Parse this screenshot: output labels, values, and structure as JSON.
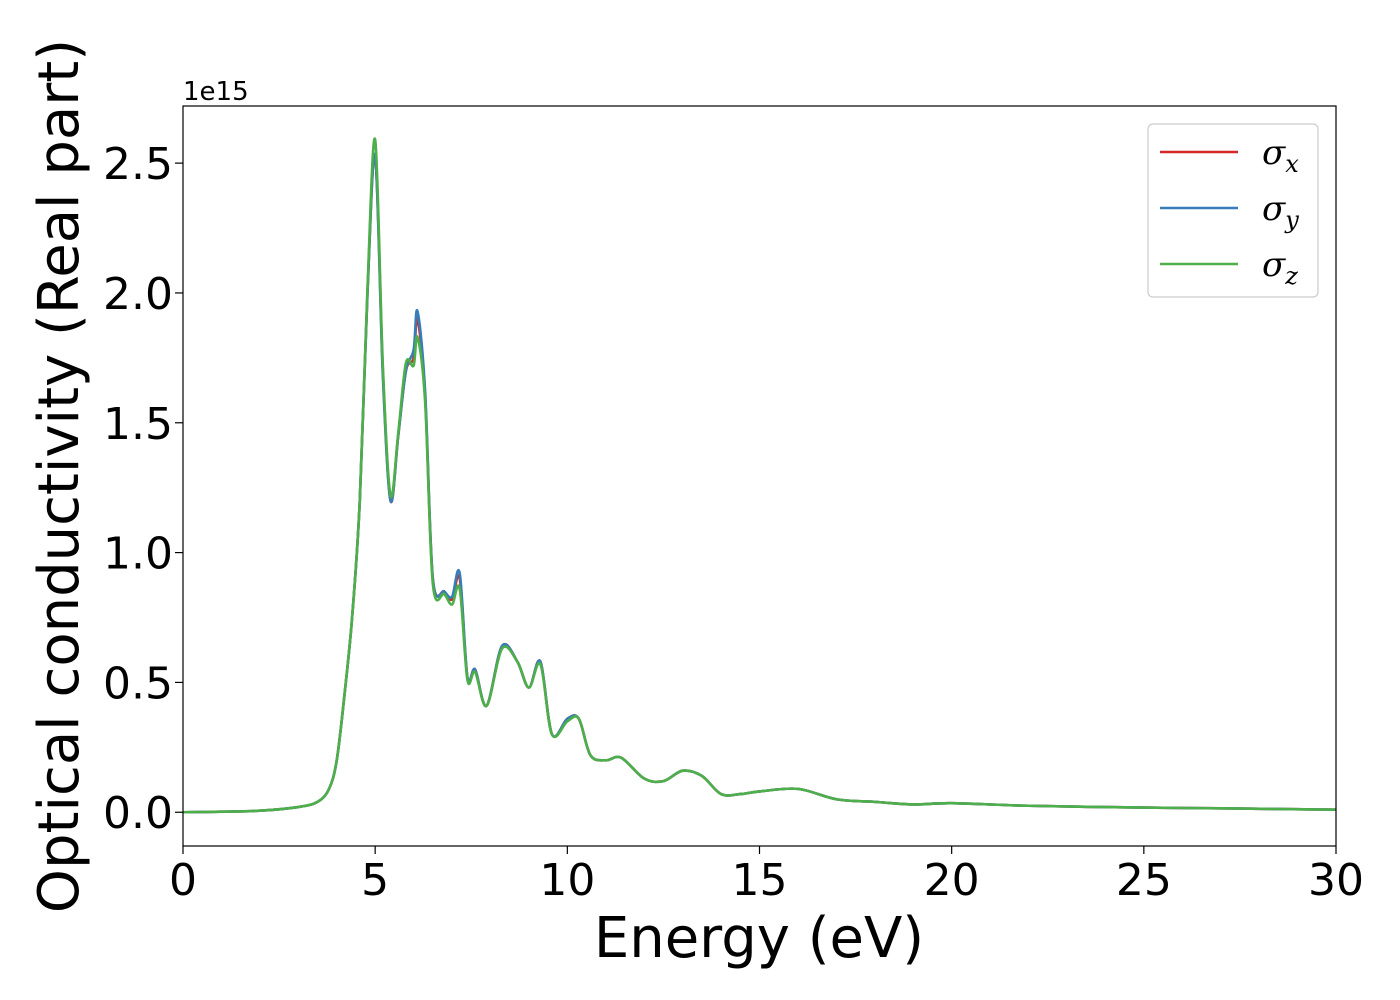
{
  "chart_data": {
    "type": "line",
    "xlabel": "Energy (eV)",
    "ylabel": "Optical conductivity (Real part)",
    "y_offset_label": "1e15",
    "xlim": [
      0,
      30
    ],
    "ylim": [
      -0.13,
      2.72
    ],
    "x_ticks": [
      0,
      5,
      10,
      15,
      20,
      25,
      30
    ],
    "x_tick_labels": [
      "0",
      "5",
      "10",
      "15",
      "20",
      "25",
      "30"
    ],
    "y_ticks": [
      0.0,
      0.5,
      1.0,
      1.5,
      2.0,
      2.5
    ],
    "y_tick_labels": [
      "0.0",
      "0.5",
      "1.0",
      "1.5",
      "2.0",
      "2.5"
    ],
    "grid": false,
    "legend_position": "top-right",
    "series": [
      {
        "name": "σx",
        "legend_base": "σ",
        "legend_sub": "x",
        "color": "#d62728",
        "x": [
          0,
          1,
          2,
          3,
          3.5,
          3.8,
          4.0,
          4.2,
          4.4,
          4.6,
          4.8,
          5.0,
          5.2,
          5.4,
          5.6,
          5.8,
          6.0,
          6.1,
          6.3,
          6.5,
          6.8,
          7.0,
          7.2,
          7.4,
          7.6,
          7.9,
          8.3,
          8.7,
          9.0,
          9.3,
          9.6,
          10.0,
          10.3,
          10.6,
          11.0,
          11.4,
          12.0,
          12.5,
          13.0,
          13.5,
          14.0,
          14.5,
          15.0,
          16.0,
          17.0,
          18.0,
          19.0,
          20.0,
          22.0,
          25.0,
          27.0,
          30.0
        ],
        "values": [
          0.0,
          0.002,
          0.006,
          0.02,
          0.04,
          0.09,
          0.2,
          0.45,
          0.75,
          1.2,
          2.0,
          2.53,
          1.7,
          1.2,
          1.45,
          1.7,
          1.75,
          1.9,
          1.6,
          0.9,
          0.85,
          0.82,
          0.9,
          0.52,
          0.55,
          0.41,
          0.64,
          0.58,
          0.48,
          0.58,
          0.3,
          0.36,
          0.36,
          0.22,
          0.2,
          0.21,
          0.13,
          0.12,
          0.16,
          0.14,
          0.07,
          0.07,
          0.08,
          0.09,
          0.05,
          0.04,
          0.03,
          0.035,
          0.025,
          0.018,
          0.015,
          0.01
        ]
      },
      {
        "name": "σy",
        "legend_base": "σ",
        "legend_sub": "y",
        "color": "#377eb8",
        "x": [
          0,
          1,
          2,
          3,
          3.5,
          3.8,
          4.0,
          4.2,
          4.4,
          4.6,
          4.8,
          5.0,
          5.2,
          5.4,
          5.6,
          5.8,
          6.0,
          6.1,
          6.3,
          6.5,
          6.8,
          7.0,
          7.2,
          7.4,
          7.6,
          7.9,
          8.3,
          8.7,
          9.0,
          9.3,
          9.6,
          10.0,
          10.3,
          10.6,
          11.0,
          11.4,
          12.0,
          12.5,
          13.0,
          13.5,
          14.0,
          14.5,
          15.0,
          16.0,
          17.0,
          18.0,
          19.0,
          20.0,
          22.0,
          25.0,
          27.0,
          30.0
        ],
        "values": [
          0.0,
          0.002,
          0.006,
          0.02,
          0.04,
          0.09,
          0.2,
          0.45,
          0.75,
          1.2,
          2.0,
          2.53,
          1.68,
          1.2,
          1.45,
          1.7,
          1.78,
          1.93,
          1.62,
          0.9,
          0.85,
          0.83,
          0.92,
          0.52,
          0.55,
          0.41,
          0.64,
          0.58,
          0.48,
          0.58,
          0.3,
          0.36,
          0.36,
          0.22,
          0.2,
          0.21,
          0.13,
          0.12,
          0.16,
          0.14,
          0.07,
          0.07,
          0.08,
          0.09,
          0.05,
          0.04,
          0.03,
          0.035,
          0.025,
          0.018,
          0.015,
          0.01
        ]
      },
      {
        "name": "σz",
        "legend_base": "σ",
        "legend_sub": "z",
        "color": "#4daf4a",
        "x": [
          0,
          1,
          2,
          3,
          3.5,
          3.8,
          4.0,
          4.2,
          4.4,
          4.6,
          4.8,
          5.0,
          5.2,
          5.4,
          5.6,
          5.8,
          6.0,
          6.1,
          6.3,
          6.5,
          6.8,
          7.0,
          7.2,
          7.4,
          7.6,
          7.9,
          8.3,
          8.7,
          9.0,
          9.3,
          9.6,
          10.0,
          10.3,
          10.6,
          11.0,
          11.4,
          12.0,
          12.5,
          13.0,
          13.5,
          14.0,
          14.5,
          15.0,
          16.0,
          17.0,
          18.0,
          19.0,
          20.0,
          22.0,
          25.0,
          27.0,
          30.0
        ],
        "values": [
          0.0,
          0.002,
          0.006,
          0.02,
          0.04,
          0.09,
          0.2,
          0.45,
          0.75,
          1.2,
          2.02,
          2.59,
          1.72,
          1.22,
          1.46,
          1.73,
          1.72,
          1.83,
          1.58,
          0.88,
          0.84,
          0.8,
          0.86,
          0.51,
          0.54,
          0.41,
          0.63,
          0.58,
          0.48,
          0.57,
          0.3,
          0.35,
          0.36,
          0.22,
          0.2,
          0.21,
          0.13,
          0.12,
          0.16,
          0.14,
          0.07,
          0.07,
          0.08,
          0.09,
          0.05,
          0.04,
          0.03,
          0.035,
          0.025,
          0.018,
          0.015,
          0.01
        ]
      }
    ]
  }
}
